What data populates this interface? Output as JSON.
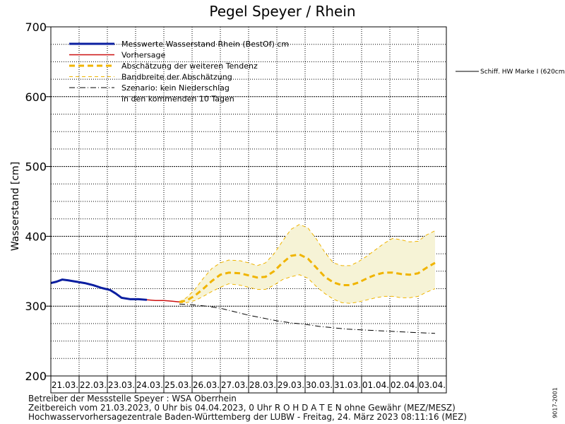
{
  "chart_data": {
    "type": "line",
    "title": "Pegel Speyer / Rhein",
    "ylabel": "Wasserstand [cm]",
    "ylim": [
      200,
      700
    ],
    "yticks": [
      200,
      300,
      400,
      500,
      600,
      700
    ],
    "grid": true,
    "xticks": [
      "21.03.",
      "22.03.",
      "23.03.",
      "24.03.",
      "25.03.",
      "26.03.",
      "27.03.",
      "28.03.",
      "29.03.",
      "30.03.",
      "31.03.",
      "01.04.",
      "02.04.",
      "03.04."
    ],
    "xlim_days": [
      0,
      14
    ],
    "legend": {
      "position": "top-left",
      "entries": [
        {
          "label": "Messwerte Wasserstand Rhein (BestOf)   cm",
          "color": "#0a1ea0",
          "style": "solid-thick"
        },
        {
          "label": "Vorhersage",
          "color": "#cc1010",
          "style": "solid"
        },
        {
          "label": "Abschätzung der weiteren Tendenz",
          "color": "#f0b400",
          "style": "dashed-thick"
        },
        {
          "label": "Bandbreite der Abschätzung",
          "color": "#f0b400",
          "style": "dashed-thin"
        },
        {
          "label": "Szenario: kein Niederschlag",
          "color": "#000000",
          "style": "dashdot"
        },
        {
          "label": "in den kommenden 10 Tagen",
          "color": "",
          "style": "none"
        }
      ]
    },
    "reference_line": {
      "label": "Schiff. HW Marke I (620cm)",
      "value": 620
    },
    "series": [
      {
        "name": "Messwerte Wasserstand Rhein (BestOf)",
        "color": "#0a1ea0",
        "x": [
          0,
          0.2,
          0.4,
          0.6,
          0.9,
          1.2,
          1.5,
          1.8,
          2.1,
          2.3,
          2.5,
          2.8,
          3.1,
          3.4
        ],
        "y": [
          333,
          335,
          338,
          337,
          335,
          333,
          330,
          326,
          323,
          318,
          312,
          310,
          310,
          309
        ]
      },
      {
        "name": "Vorhersage",
        "color": "#cc1010",
        "x": [
          3.4,
          3.7,
          4.0,
          4.3,
          4.55
        ],
        "y": [
          309,
          308,
          308,
          307,
          306
        ]
      },
      {
        "name": "Abschätzung der weiteren Tendenz",
        "color": "#f0b400",
        "x": [
          4.55,
          4.8,
          5.1,
          5.4,
          5.7,
          6.0,
          6.3,
          6.7,
          7.0,
          7.3,
          7.6,
          7.9,
          8.2,
          8.5,
          8.8,
          9.1,
          9.4,
          9.7,
          10.0,
          10.3,
          10.6,
          10.9,
          11.2,
          11.5,
          11.8,
          12.1,
          12.4,
          12.7,
          13.0,
          13.3,
          13.6
        ],
        "y": [
          306,
          308,
          315,
          325,
          336,
          345,
          348,
          347,
          344,
          341,
          342,
          350,
          362,
          372,
          374,
          368,
          355,
          342,
          334,
          330,
          330,
          334,
          340,
          345,
          348,
          348,
          346,
          345,
          347,
          355,
          362
        ]
      },
      {
        "name": "Bandbreite der Abschätzung (oben)",
        "color": "#f0b400",
        "x": [
          4.55,
          4.8,
          5.1,
          5.4,
          5.7,
          6.0,
          6.3,
          6.7,
          7.0,
          7.3,
          7.6,
          7.9,
          8.2,
          8.5,
          8.8,
          9.1,
          9.4,
          9.7,
          10.0,
          10.3,
          10.6,
          10.9,
          11.2,
          11.5,
          11.8,
          12.1,
          12.4,
          12.7,
          13.0,
          13.3,
          13.6
        ],
        "y": [
          306,
          312,
          324,
          340,
          354,
          362,
          366,
          365,
          362,
          358,
          362,
          375,
          393,
          410,
          417,
          412,
          396,
          377,
          362,
          358,
          358,
          364,
          372,
          381,
          390,
          397,
          395,
          392,
          393,
          402,
          408
        ]
      },
      {
        "name": "Bandbreite der Abschätzung (unten)",
        "color": "#f0b400",
        "x": [
          4.55,
          4.8,
          5.1,
          5.4,
          5.7,
          6.0,
          6.3,
          6.7,
          7.0,
          7.3,
          7.6,
          7.9,
          8.2,
          8.5,
          8.8,
          9.1,
          9.4,
          9.7,
          10.0,
          10.3,
          10.6,
          10.9,
          11.2,
          11.5,
          11.8,
          12.1,
          12.4,
          12.7,
          13.0,
          13.3,
          13.6
        ],
        "y": [
          305,
          305,
          308,
          314,
          321,
          327,
          332,
          330,
          327,
          324,
          324,
          330,
          338,
          342,
          345,
          340,
          328,
          318,
          310,
          305,
          304,
          306,
          309,
          312,
          314,
          314,
          312,
          312,
          314,
          320,
          325
        ]
      },
      {
        "name": "Szenario: kein Niederschlag",
        "color": "#000000",
        "x": [
          4.55,
          5.0,
          5.5,
          6.0,
          6.5,
          7.0,
          7.5,
          8.0,
          8.5,
          9.0,
          9.5,
          10.0,
          10.5,
          11.0,
          11.5,
          12.0,
          12.5,
          13.0,
          13.6
        ],
        "y": [
          303,
          302,
          300,
          297,
          292,
          287,
          283,
          279,
          276,
          274,
          271,
          269,
          267,
          266,
          265,
          264,
          263,
          262,
          261
        ]
      }
    ]
  },
  "footer": {
    "line1": "Betreiber der Messstelle Speyer : WSA Oberrhein",
    "line2": "Zeitbereich vom 21.03.2023, 0 Uhr bis 04.04.2023, 0 Uhr   R O H D A T E N ohne Gewähr (MEZ/MESZ)",
    "line3": "Hochwasservorhersagezentrale Baden-Württemberg der LUBW - Freitag, 24. März 2023 08:11:16 (MEZ)"
  },
  "code_label": "9017-2001"
}
